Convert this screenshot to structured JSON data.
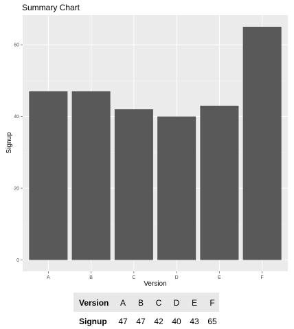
{
  "chart_data": {
    "type": "bar",
    "title": "Summary Chart",
    "xlabel": "Version",
    "ylabel": "Signup",
    "categories": [
      "A",
      "B",
      "C",
      "D",
      "E",
      "F"
    ],
    "values": [
      47,
      47,
      42,
      40,
      43,
      65
    ],
    "ylim": [
      0,
      68.25
    ],
    "yticks": [
      0,
      20,
      40,
      60
    ],
    "grid": true,
    "legend": "none",
    "colors": {
      "bar": "#595959",
      "panel": "#ebebeb",
      "grid_major": "#ffffff",
      "table_header_bg": "#e8e8e8"
    }
  },
  "table": {
    "header_label": "Version",
    "row_label": "Signup",
    "columns": [
      "A",
      "B",
      "C",
      "D",
      "E",
      "F"
    ],
    "values": [
      "47",
      "47",
      "42",
      "40",
      "43",
      "65"
    ]
  }
}
